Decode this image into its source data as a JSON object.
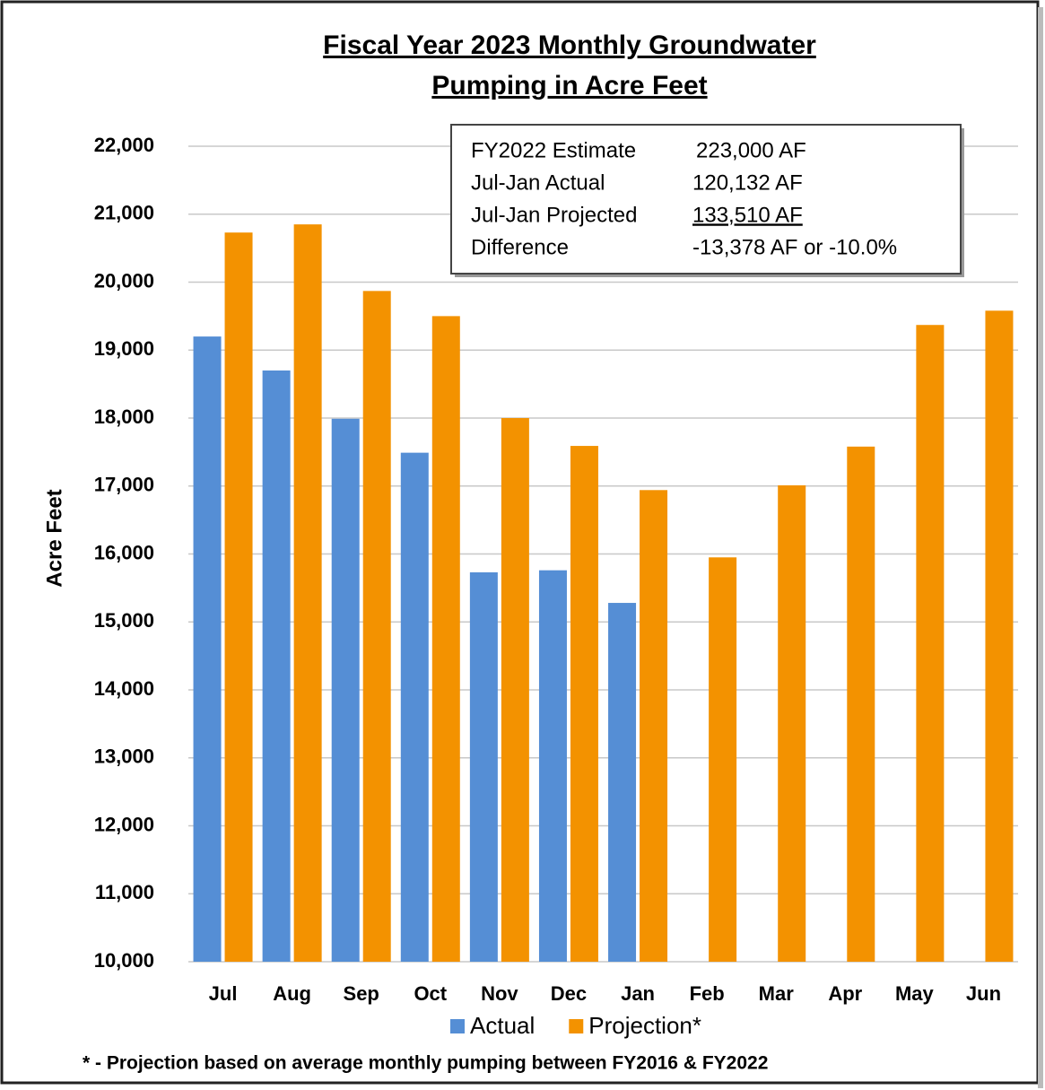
{
  "chart_data": {
    "type": "bar",
    "title": [
      "Fiscal Year 2023 Monthly Groundwater",
      "Pumping in Acre Feet"
    ],
    "y_label": "Acre Feet",
    "categories": [
      "Jul",
      "Aug",
      "Sep",
      "Oct",
      "Nov",
      "Dec",
      "Jan",
      "Feb",
      "Mar",
      "Apr",
      "May",
      "Jun"
    ],
    "series": [
      {
        "name": "Actual",
        "color": "#558ed5",
        "values": [
          19200,
          18700,
          17990,
          17490,
          15730,
          15760,
          15280,
          null,
          null,
          null,
          null,
          null
        ]
      },
      {
        "name": "Projection*",
        "color": "#f39200",
        "values": [
          20730,
          20850,
          19870,
          19500,
          18000,
          17590,
          16940,
          15950,
          17010,
          17580,
          19370,
          19580
        ]
      }
    ],
    "ylim": [
      10000,
      22000
    ],
    "yticks": [
      {
        "value": 10000,
        "label": "10,000"
      },
      {
        "value": 11000,
        "label": "11,000"
      },
      {
        "value": 12000,
        "label": "12,000"
      },
      {
        "value": 13000,
        "label": "13,000"
      },
      {
        "value": 14000,
        "label": "14,000"
      },
      {
        "value": 15000,
        "label": "15,000"
      },
      {
        "value": 16000,
        "label": "16,000"
      },
      {
        "value": 17000,
        "label": "17,000"
      },
      {
        "value": 18000,
        "label": "18,000"
      },
      {
        "value": 19000,
        "label": "19,000"
      },
      {
        "value": 20000,
        "label": "20,000"
      },
      {
        "value": 21000,
        "label": "21,000"
      },
      {
        "value": 22000,
        "label": "22,000"
      }
    ],
    "grid": true,
    "legend": "bottom",
    "annotation": [
      [
        "FY2022 Estimate",
        "223,000 AF"
      ],
      [
        "Jul-Jan Actual",
        "120,132 AF"
      ],
      [
        "Jul-Jan Projected",
        "133,510 AF"
      ],
      [
        "Difference",
        "-13,378 AF or -10.0%"
      ]
    ],
    "footnote": "* - Projection based on average monthly pumping between FY2016 & FY2022"
  }
}
